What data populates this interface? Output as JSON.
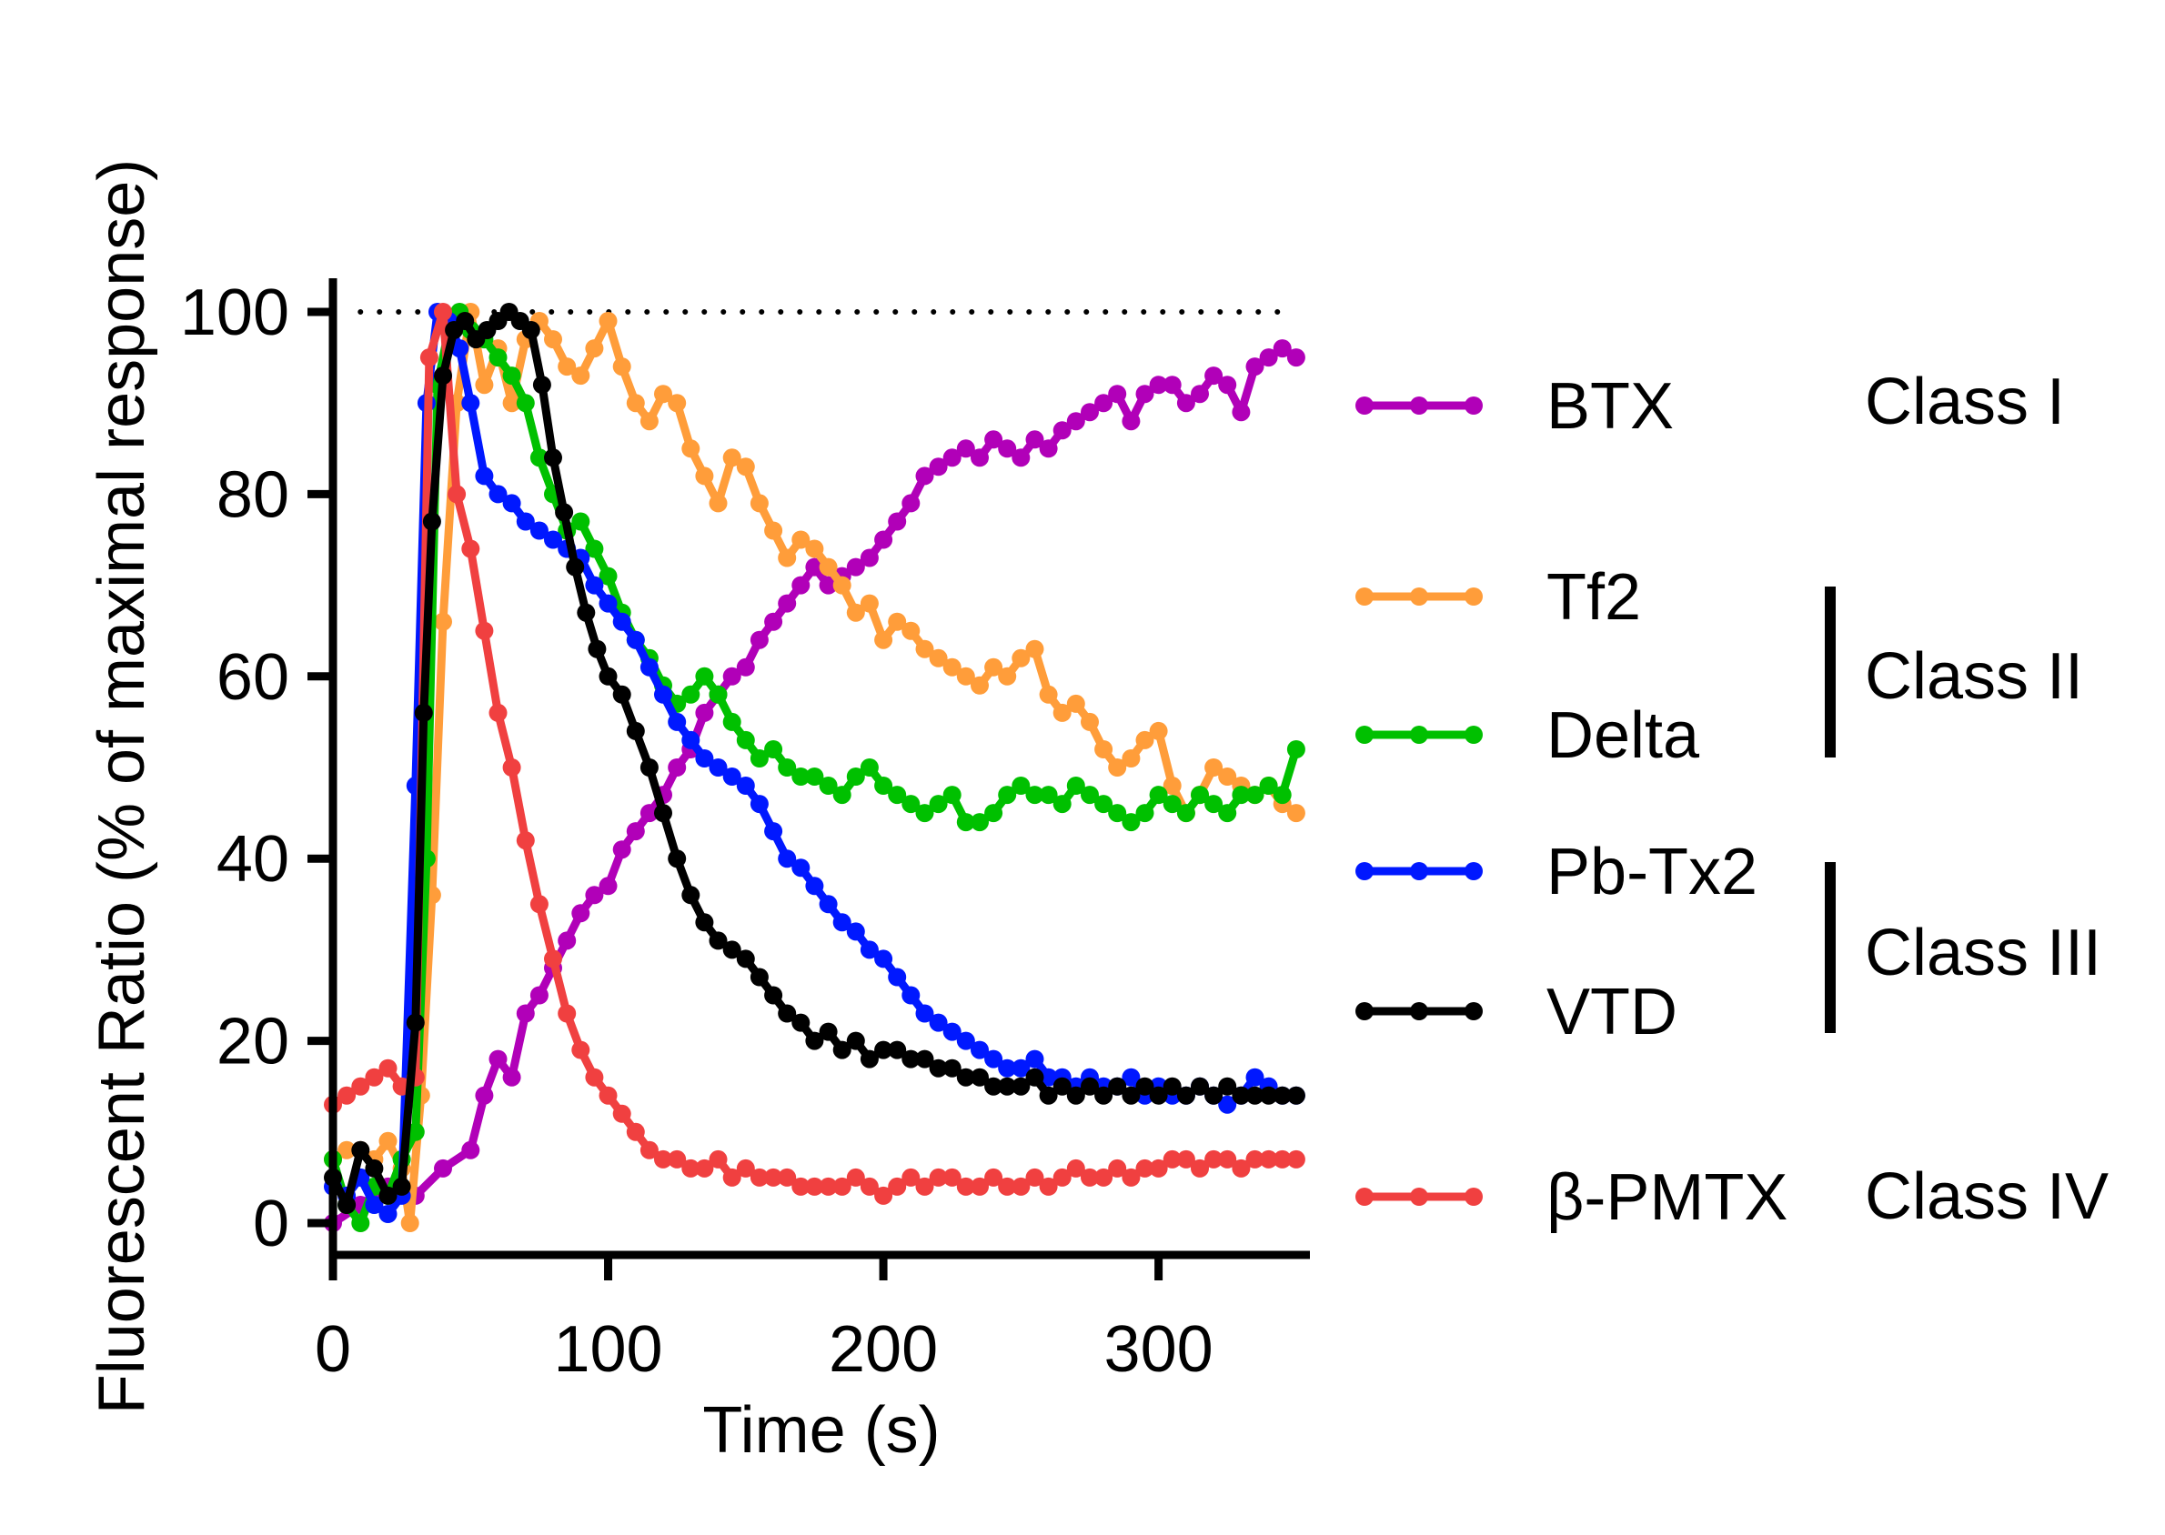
{
  "chart_data": {
    "type": "line",
    "title": "",
    "xlabel": "Time (s)",
    "ylabel": "Fluorescent Ratio (% of maximal response)",
    "xlim": [
      0,
      355
    ],
    "ylim": [
      0,
      105
    ],
    "xticks": [
      0,
      100,
      200,
      300
    ],
    "yticks": [
      0,
      20,
      40,
      60,
      80,
      100
    ],
    "xtick_labels": [
      "0",
      "100",
      "200",
      "300"
    ],
    "ytick_labels": [
      "0",
      "20",
      "40",
      "60",
      "80",
      "100"
    ],
    "reference_line": {
      "y": 100,
      "x_range": [
        10,
        350
      ],
      "style": "dotted"
    },
    "grid": false,
    "legend_position": "right",
    "series": [
      {
        "name": "BTX",
        "color": "#b100b8",
        "x": [
          0,
          10,
          20,
          30,
          40,
          50,
          55,
          60,
          65,
          70,
          75,
          80,
          85,
          90,
          95,
          100,
          105,
          110,
          115,
          120,
          125,
          130,
          135,
          140,
          145,
          150,
          155,
          160,
          165,
          170,
          175,
          180,
          185,
          190,
          195,
          200,
          205,
          210,
          215,
          220,
          225,
          230,
          235,
          240,
          245,
          250,
          255,
          260,
          265,
          270,
          275,
          280,
          285,
          290,
          295,
          300,
          305,
          310,
          315,
          320,
          325,
          330,
          335,
          340,
          345,
          350
        ],
        "y": [
          0,
          2,
          4,
          3,
          6,
          8,
          14,
          18,
          16,
          23,
          25,
          28,
          31,
          34,
          36,
          37,
          41,
          43,
          45,
          47,
          50,
          52,
          56,
          58,
          60,
          61,
          64,
          66,
          68,
          70,
          72,
          70,
          71,
          72,
          73,
          75,
          77,
          79,
          82,
          83,
          84,
          85,
          84,
          86,
          85,
          84,
          86,
          85,
          87,
          88,
          89,
          90,
          91,
          88,
          91,
          92,
          92,
          90,
          91,
          93,
          92,
          89,
          94,
          95,
          96,
          95
        ]
      },
      {
        "name": "Tf2",
        "color": "#ff9d3a",
        "x": [
          0,
          5,
          10,
          15,
          20,
          25,
          28,
          32,
          36,
          40,
          45,
          50,
          55,
          60,
          65,
          70,
          75,
          80,
          85,
          90,
          95,
          100,
          105,
          110,
          115,
          120,
          125,
          130,
          135,
          140,
          145,
          150,
          155,
          160,
          165,
          170,
          175,
          180,
          185,
          190,
          195,
          200,
          205,
          210,
          215,
          220,
          225,
          230,
          235,
          240,
          245,
          250,
          255,
          260,
          265,
          270,
          275,
          280,
          285,
          290,
          295,
          300,
          305,
          310,
          315,
          320,
          325,
          330,
          335,
          340,
          345,
          350
        ],
        "y": [
          7,
          8,
          8,
          7,
          9,
          6,
          0,
          14,
          36,
          66,
          90,
          100,
          92,
          96,
          90,
          97,
          99,
          97,
          94,
          93,
          96,
          99,
          94,
          90,
          88,
          91,
          90,
          85,
          82,
          79,
          84,
          83,
          79,
          76,
          73,
          75,
          74,
          72,
          70,
          67,
          68,
          64,
          66,
          65,
          63,
          62,
          61,
          60,
          59,
          61,
          60,
          62,
          63,
          58,
          56,
          57,
          55,
          52,
          50,
          51,
          53,
          54,
          48,
          45,
          47,
          50,
          49,
          48,
          47,
          48,
          46,
          45
        ]
      },
      {
        "name": "Delta",
        "color": "#00c000",
        "x": [
          0,
          5,
          10,
          15,
          20,
          25,
          30,
          34,
          38,
          42,
          46,
          50,
          55,
          60,
          65,
          70,
          75,
          80,
          85,
          90,
          95,
          100,
          105,
          110,
          115,
          120,
          125,
          130,
          135,
          140,
          145,
          150,
          155,
          160,
          165,
          170,
          175,
          180,
          185,
          190,
          195,
          200,
          205,
          210,
          215,
          220,
          225,
          230,
          235,
          240,
          245,
          250,
          255,
          260,
          265,
          270,
          275,
          280,
          285,
          290,
          295,
          300,
          305,
          310,
          315,
          320,
          325,
          330,
          335,
          340,
          345,
          350
        ],
        "y": [
          7,
          2,
          0,
          4,
          3,
          7,
          10,
          40,
          92,
          98,
          100,
          98,
          97,
          95,
          93,
          90,
          84,
          80,
          76,
          77,
          74,
          71,
          67,
          64,
          62,
          59,
          57,
          58,
          60,
          58,
          55,
          53,
          51,
          52,
          50,
          49,
          49,
          48,
          47,
          49,
          50,
          48,
          47,
          46,
          45,
          46,
          47,
          44,
          44,
          45,
          47,
          48,
          47,
          47,
          46,
          48,
          47,
          46,
          45,
          44,
          45,
          47,
          46,
          45,
          47,
          46,
          45,
          47,
          47,
          48,
          47,
          52
        ]
      },
      {
        "name": "Pb-Tx2",
        "color": "#0018ff",
        "x": [
          0,
          5,
          10,
          15,
          20,
          25,
          30,
          34,
          38,
          42,
          46,
          50,
          55,
          60,
          65,
          70,
          75,
          80,
          85,
          90,
          95,
          100,
          105,
          110,
          115,
          120,
          125,
          130,
          135,
          140,
          145,
          150,
          155,
          160,
          165,
          170,
          175,
          180,
          185,
          190,
          195,
          200,
          205,
          210,
          215,
          220,
          225,
          230,
          235,
          240,
          245,
          250,
          255,
          260,
          265,
          270,
          275,
          280,
          285,
          290,
          295,
          300,
          305,
          310,
          315,
          320,
          325,
          330,
          335,
          340,
          345,
          350
        ],
        "y": [
          4,
          3,
          5,
          2,
          1,
          3,
          48,
          90,
          100,
          99,
          96,
          90,
          82,
          80,
          79,
          77,
          76,
          75,
          74,
          73,
          70,
          68,
          66,
          64,
          61,
          58,
          55,
          53,
          51,
          50,
          49,
          48,
          46,
          43,
          40,
          39,
          37,
          35,
          33,
          32,
          30,
          29,
          27,
          25,
          23,
          22,
          21,
          20,
          19,
          18,
          17,
          17,
          18,
          16,
          16,
          15,
          16,
          15,
          15,
          16,
          14,
          15,
          14,
          14,
          15,
          14,
          13,
          14,
          16,
          15,
          14,
          14
        ]
      },
      {
        "name": "VTD",
        "color": "#000000",
        "x": [
          0,
          5,
          10,
          15,
          20,
          25,
          30,
          33,
          36,
          40,
          44,
          48,
          52,
          56,
          60,
          64,
          68,
          72,
          76,
          80,
          84,
          88,
          92,
          96,
          100,
          105,
          110,
          115,
          120,
          125,
          130,
          135,
          140,
          145,
          150,
          155,
          160,
          165,
          170,
          175,
          180,
          185,
          190,
          195,
          200,
          205,
          210,
          215,
          220,
          225,
          230,
          235,
          240,
          245,
          250,
          255,
          260,
          265,
          270,
          275,
          280,
          285,
          290,
          295,
          300,
          305,
          310,
          315,
          320,
          325,
          330,
          335,
          340,
          345,
          350
        ],
        "y": [
          5,
          2,
          8,
          6,
          3,
          4,
          22,
          56,
          77,
          93,
          98,
          99,
          97,
          98,
          99,
          100,
          99,
          98,
          92,
          84,
          78,
          72,
          67,
          63,
          60,
          58,
          54,
          50,
          45,
          40,
          36,
          33,
          31,
          30,
          29,
          27,
          25,
          23,
          22,
          20,
          21,
          19,
          20,
          18,
          19,
          19,
          18,
          18,
          17,
          17,
          16,
          16,
          15,
          15,
          15,
          16,
          14,
          15,
          14,
          15,
          14,
          15,
          14,
          15,
          14,
          15,
          14,
          15,
          14,
          15,
          14,
          14,
          14,
          14,
          14
        ]
      },
      {
        "name": "β-PMTX",
        "color": "#f04040",
        "x": [
          0,
          5,
          10,
          15,
          20,
          25,
          30,
          35,
          40,
          45,
          50,
          55,
          60,
          65,
          70,
          75,
          80,
          85,
          90,
          95,
          100,
          105,
          110,
          115,
          120,
          125,
          130,
          135,
          140,
          145,
          150,
          155,
          160,
          165,
          170,
          175,
          180,
          185,
          190,
          195,
          200,
          205,
          210,
          215,
          220,
          225,
          230,
          235,
          240,
          245,
          250,
          255,
          260,
          265,
          270,
          275,
          280,
          285,
          290,
          295,
          300,
          305,
          310,
          315,
          320,
          325,
          330,
          335,
          340,
          345,
          350
        ],
        "y": [
          13,
          14,
          15,
          16,
          17,
          15,
          16,
          95,
          100,
          80,
          74,
          65,
          56,
          50,
          42,
          35,
          29,
          23,
          19,
          16,
          14,
          12,
          10,
          8,
          7,
          7,
          6,
          6,
          7,
          5,
          6,
          5,
          5,
          5,
          4,
          4,
          4,
          4,
          5,
          4,
          3,
          4,
          5,
          4,
          5,
          5,
          4,
          4,
          5,
          4,
          4,
          5,
          4,
          5,
          6,
          5,
          5,
          6,
          5,
          6,
          6,
          7,
          7,
          6,
          7,
          7,
          6,
          7,
          7,
          7,
          7
        ]
      }
    ]
  },
  "legend": {
    "entries": [
      {
        "label": "BTX",
        "color": "#b100b8"
      },
      {
        "label": "Tf2",
        "color": "#ff9d3a"
      },
      {
        "label": "Delta",
        "color": "#00c000"
      },
      {
        "label": "Pb-Tx2",
        "color": "#0018ff"
      },
      {
        "label": "VTD",
        "color": "#000000"
      },
      {
        "label": "β-PMTX",
        "color": "#f04040"
      }
    ],
    "classes": [
      "Class I",
      "Class II",
      "Class III",
      "Class IV"
    ]
  }
}
